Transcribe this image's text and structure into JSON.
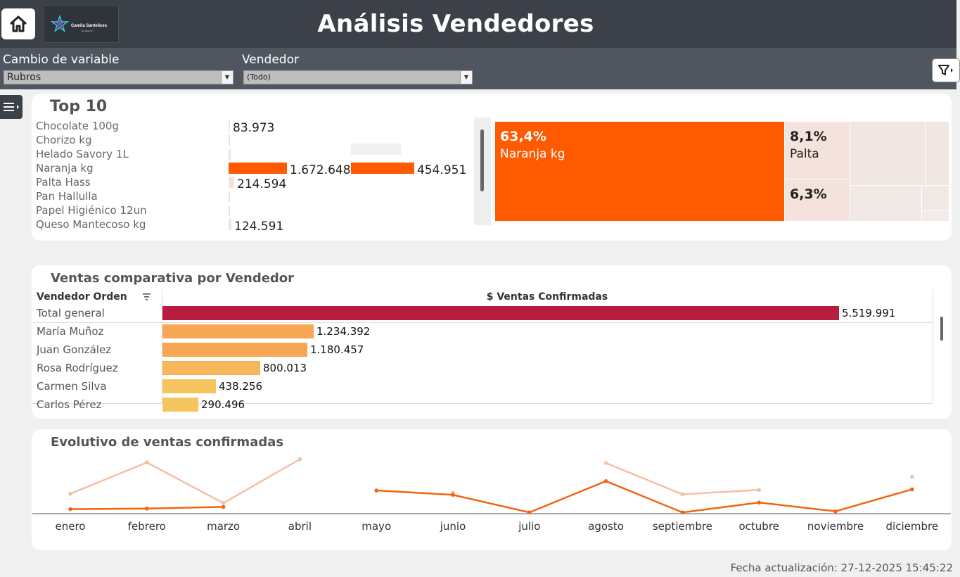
{
  "header": {
    "title": "Análisis Vendedores",
    "logo_text": "Camila Santelices",
    "logo_sub": "BI ANALYST"
  },
  "filters": {
    "variable_label": "Cambio de variable",
    "variable_value": "Rubros",
    "vendedor_label": "Vendedor",
    "vendedor_value": "(Todo)"
  },
  "top10": {
    "title": "Top 10",
    "items": [
      {
        "label": "Chocolate 100g",
        "value": "83.973"
      },
      {
        "label": "Chorizo kg",
        "value": ""
      },
      {
        "label": "Helado Savory 1L",
        "value": ""
      },
      {
        "label": "Naranja kg",
        "value": "1.672.648",
        "value2": "454.951"
      },
      {
        "label": "Palta Hass",
        "value": "214.594"
      },
      {
        "label": "Pan Hallulla",
        "value": ""
      },
      {
        "label": "Papel Higiénico 12un",
        "value": ""
      },
      {
        "label": "Queso Mantecoso kg",
        "value": "124.591"
      }
    ],
    "bar_fractions": [
      0.03,
      0.005,
      0.05,
      1.0,
      0.13,
      0.005,
      0.005,
      0.07
    ],
    "bar2_fraction": 0.27,
    "colors": {
      "accent": "#ff5a00",
      "light": "#f3e3dc",
      "lighter": "#f0f0f0"
    }
  },
  "treemap": {
    "cells": [
      {
        "pct": "63,4%",
        "name": "Naranja kg"
      },
      {
        "pct": "8,1%",
        "name": "Palta"
      },
      {
        "pct": "6,3%",
        "name": ""
      }
    ],
    "values": [
      63.4,
      8.1,
      6.3
    ]
  },
  "vendedores": {
    "title": "Ventas comparativa por Vendedor",
    "col1": "Vendedor Orden",
    "col2": "$ Ventas Confirmadas",
    "total": {
      "name": "Total general",
      "value": "5.519.991",
      "amount": 5519991
    },
    "rows": [
      {
        "name": "María Muñoz",
        "value": "1.234.392",
        "amount": 1234392
      },
      {
        "name": "Juan González",
        "value": "1.180.457",
        "amount": 1180457
      },
      {
        "name": "Rosa Rodríguez",
        "value": "800.013",
        "amount": 800013
      },
      {
        "name": "Carmen Silva",
        "value": "438.256",
        "amount": 438256
      },
      {
        "name": "Carlos Pérez",
        "value": "290.496",
        "amount": 290496
      }
    ],
    "colors": {
      "total": "#b81c3f",
      "rows": [
        "#f7a653",
        "#f7a653",
        "#f7b65a",
        "#f7c560",
        "#f7c560"
      ]
    }
  },
  "chart_data": {
    "type": "line",
    "title": "Evolutivo de ventas confirmadas",
    "categories": [
      "enero",
      "febrero",
      "marzo",
      "abril",
      "mayo",
      "junio",
      "julio",
      "agosto",
      "septiembre",
      "octubre",
      "noviembre",
      "diciembre"
    ],
    "series": [
      {
        "color": "#f4c0a4",
        "values": [
          0.35,
          0.92,
          0.18,
          0.98,
          null,
          0.37,
          null,
          0.91,
          0.34,
          0.42,
          null,
          0.66
        ]
      },
      {
        "color": "#f26411",
        "values": [
          0.07,
          0.08,
          0.11,
          null,
          0.41,
          0.33,
          0.01,
          0.58,
          0.01,
          0.19,
          0.03,
          0.43
        ]
      }
    ],
    "ylim": [
      0,
      1
    ],
    "grid": false
  },
  "footer": {
    "updated": "Fecha actualización: 27-12-2025 15:45:22"
  }
}
